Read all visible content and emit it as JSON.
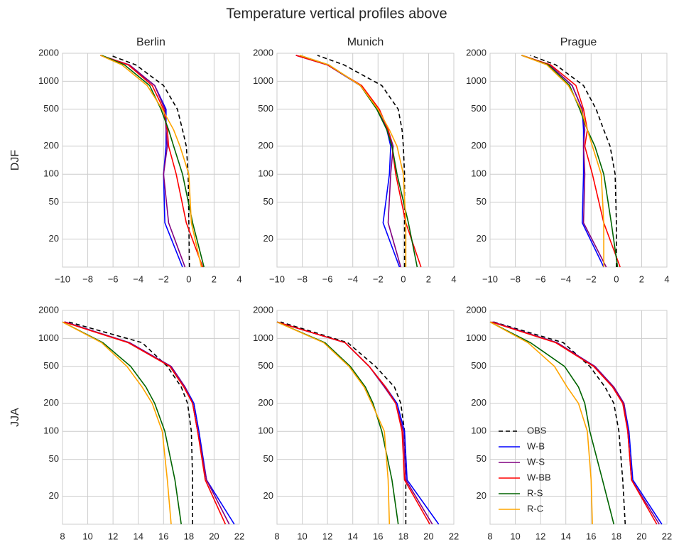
{
  "title": "Temperature vertical profiles above",
  "chart_data": [
    {
      "type": "line",
      "title": "Berlin",
      "ylabel": "DJF",
      "log_y": true,
      "grid": true,
      "xlim": [
        -10,
        4
      ],
      "xticks": [
        {
          "value": -10,
          "label": "−10"
        },
        {
          "value": -8,
          "label": "−8"
        },
        {
          "value": -6,
          "label": "−6"
        },
        {
          "value": -4,
          "label": "−4"
        },
        {
          "value": -2,
          "label": "−2"
        },
        0,
        2,
        4
      ],
      "ylim": [
        10,
        2000
      ],
      "yticks": [
        20,
        50,
        100,
        200,
        500,
        1000,
        2000
      ],
      "y": [
        10,
        30,
        100,
        200,
        300,
        500,
        900,
        1500,
        1900
      ],
      "series": [
        {
          "name": "OBS",
          "color": "#000000",
          "linestyle": "dashed",
          "x": [
            0.05,
            0,
            -0.05,
            -0.2,
            -0.5,
            -0.9,
            -2,
            -4.2,
            -6.2
          ]
        },
        {
          "name": "W-B",
          "color": "#0000ff",
          "x": [
            -0.5,
            -1.9,
            -2,
            -1.8,
            -1.8,
            -1.8,
            -2.7,
            -4.8,
            -7
          ]
        },
        {
          "name": "W-S",
          "color": "#800080",
          "x": [
            -0.3,
            -1.6,
            -2,
            -1.7,
            -1.8,
            -1.9,
            -2.7,
            -4.7,
            -7
          ]
        },
        {
          "name": "W-BB",
          "color": "#ff0000",
          "x": [
            1.1,
            -0.2,
            -1,
            -1.6,
            -1.7,
            -2,
            -2.9,
            -4.8,
            -7
          ]
        },
        {
          "name": "R-S",
          "color": "#006400",
          "x": [
            1.2,
            0.3,
            -0.5,
            -1.2,
            -1.6,
            -2.2,
            -3.1,
            -5.1,
            -6.9
          ]
        },
        {
          "name": "R-C",
          "color": "#ffa500",
          "x": [
            1,
            0.2,
            0,
            -0.7,
            -1.2,
            -2.1,
            -3.3,
            -5.3,
            -7
          ]
        }
      ]
    },
    {
      "type": "line",
      "title": "Munich",
      "log_y": true,
      "grid": true,
      "xlim": [
        -10,
        4
      ],
      "xticks": [
        {
          "value": -10,
          "label": "−10"
        },
        {
          "value": -8,
          "label": "−8"
        },
        {
          "value": -6,
          "label": "−6"
        },
        {
          "value": -4,
          "label": "−4"
        },
        {
          "value": -2,
          "label": "−2"
        },
        0,
        2,
        4
      ],
      "ylim": [
        10,
        2000
      ],
      "yticks": [
        20,
        50,
        100,
        200,
        500,
        1000,
        2000
      ],
      "y": [
        10,
        30,
        100,
        200,
        300,
        500,
        900,
        1500,
        1900
      ],
      "series": [
        {
          "name": "OBS",
          "color": "#000000",
          "linestyle": "dashed",
          "x": [
            0.1,
            0.1,
            0.1,
            0,
            -0.1,
            -0.4,
            -1.7,
            -4.7,
            -6.8
          ]
        },
        {
          "name": "W-B",
          "color": "#0000ff",
          "x": [
            -0.3,
            -1.6,
            -1.1,
            -1,
            -1.3,
            -2,
            -3.4,
            -6,
            -8.5
          ]
        },
        {
          "name": "W-S",
          "color": "#800080",
          "x": [
            -0.2,
            -1.2,
            -1,
            -0.8,
            -1.2,
            -2,
            -3.4,
            -6,
            -8.5
          ]
        },
        {
          "name": "W-BB",
          "color": "#ff0000",
          "x": [
            1.4,
            0.2,
            -0.6,
            -0.9,
            -1.2,
            -1.9,
            -3.3,
            -6,
            -8.5
          ]
        },
        {
          "name": "R-S",
          "color": "#006400",
          "x": [
            1.1,
            0.4,
            -0.5,
            -0.9,
            -1.3,
            -2.1,
            -3.4,
            -5.9,
            -8.2
          ]
        },
        {
          "name": "R-C",
          "color": "#ffa500",
          "x": [
            0.2,
            0.2,
            0,
            -0.5,
            -1.1,
            -2,
            -3.4,
            -5.9,
            -8.2
          ]
        }
      ]
    },
    {
      "type": "line",
      "title": "Prague",
      "log_y": true,
      "grid": true,
      "xlim": [
        -10,
        4
      ],
      "xticks": [
        {
          "value": -10,
          "label": "−10"
        },
        {
          "value": -8,
          "label": "−8"
        },
        {
          "value": -6,
          "label": "−6"
        },
        {
          "value": -4,
          "label": "−4"
        },
        {
          "value": -2,
          "label": "−2"
        },
        0,
        2,
        4
      ],
      "ylim": [
        10,
        2000
      ],
      "yticks": [
        20,
        50,
        100,
        200,
        500,
        1000,
        2000
      ],
      "y": [
        10,
        30,
        100,
        200,
        300,
        500,
        900,
        1500,
        1900
      ],
      "series": [
        {
          "name": "OBS",
          "color": "#000000",
          "linestyle": "dashed",
          "x": [
            0,
            0,
            -0.1,
            -0.5,
            -1,
            -1.6,
            -2.6,
            -4.8,
            -6.8
          ]
        },
        {
          "name": "W-B",
          "color": "#0000ff",
          "x": [
            -1,
            -2.7,
            -2.6,
            -2.6,
            -2.6,
            -2.7,
            -3.5,
            -5.3,
            -7.5
          ]
        },
        {
          "name": "W-S",
          "color": "#800080",
          "x": [
            -0.8,
            -2.6,
            -2.5,
            -2.6,
            -2.5,
            -2.7,
            -3.5,
            -5.3,
            -7.5
          ]
        },
        {
          "name": "W-BB",
          "color": "#ff0000",
          "x": [
            0.3,
            -1,
            -1.9,
            -2.5,
            -2.3,
            -2.6,
            -3.2,
            -5.2,
            -7.5
          ]
        },
        {
          "name": "R-S",
          "color": "#006400",
          "x": [
            0.1,
            -0.4,
            -1,
            -1.7,
            -2.3,
            -2.9,
            -3.7,
            -5.4,
            -7.5
          ]
        },
        {
          "name": "R-C",
          "color": "#ffa500",
          "x": [
            -1,
            -1,
            -1.2,
            -1.9,
            -2.3,
            -2.8,
            -3.8,
            -5.5,
            -7.5
          ]
        }
      ]
    },
    {
      "type": "line",
      "ylabel": "JJA",
      "log_y": true,
      "grid": true,
      "xlim": [
        8,
        22
      ],
      "xticks": [
        8,
        10,
        12,
        14,
        16,
        18,
        20,
        22
      ],
      "ylim": [
        10,
        2000
      ],
      "yticks": [
        20,
        50,
        100,
        200,
        500,
        1000,
        2000
      ],
      "y": [
        10,
        30,
        100,
        200,
        300,
        500,
        900,
        1500
      ],
      "series": [
        {
          "name": "OBS",
          "color": "#000000",
          "linestyle": "dashed",
          "x": [
            18.3,
            18.3,
            18.2,
            17.9,
            17.4,
            16.3,
            14.3,
            8.5
          ]
        },
        {
          "name": "W-B",
          "color": "#0000ff",
          "x": [
            21.6,
            19.4,
            18.8,
            18.4,
            17.7,
            16.6,
            13.3,
            8.2
          ]
        },
        {
          "name": "W-S",
          "color": "#800080",
          "x": [
            21.2,
            19.4,
            18.7,
            18.3,
            17.7,
            16.6,
            13.3,
            8.2
          ]
        },
        {
          "name": "W-BB",
          "color": "#ff0000",
          "x": [
            20.9,
            19.3,
            18.7,
            18.3,
            17.6,
            16.5,
            13.2,
            8.1
          ]
        },
        {
          "name": "R-S",
          "color": "#006400",
          "x": [
            17.4,
            16.9,
            16.1,
            15.3,
            14.6,
            13.4,
            11.2,
            8
          ]
        },
        {
          "name": "R-C",
          "color": "#ffa500",
          "x": [
            16.6,
            16.3,
            15.9,
            15.1,
            14.3,
            13.1,
            11.1,
            8
          ]
        }
      ]
    },
    {
      "type": "line",
      "log_y": true,
      "grid": true,
      "xlim": [
        8,
        22
      ],
      "xticks": [
        8,
        10,
        12,
        14,
        16,
        18,
        20,
        22
      ],
      "ylim": [
        10,
        2000
      ],
      "yticks": [
        20,
        50,
        100,
        200,
        500,
        1000,
        2000
      ],
      "y": [
        10,
        30,
        100,
        200,
        300,
        500,
        900,
        1500
      ],
      "series": [
        {
          "name": "OBS",
          "color": "#000000",
          "linestyle": "dashed",
          "x": [
            18.2,
            18.2,
            18.1,
            17.8,
            17.3,
            15.8,
            13.6,
            8.3
          ]
        },
        {
          "name": "W-B",
          "color": "#0000ff",
          "x": [
            20.8,
            18.3,
            18.1,
            17.5,
            16.6,
            15.3,
            13.4,
            8
          ]
        },
        {
          "name": "W-S",
          "color": "#800080",
          "x": [
            20.3,
            18.2,
            18,
            17.4,
            16.5,
            15.3,
            13.4,
            8
          ]
        },
        {
          "name": "W-BB",
          "color": "#ff0000",
          "x": [
            20.1,
            18.1,
            17.9,
            17.4,
            16.6,
            15.3,
            13.4,
            8
          ]
        },
        {
          "name": "R-S",
          "color": "#006400",
          "x": [
            17.6,
            17.1,
            16.3,
            15.6,
            15,
            13.8,
            11.8,
            8
          ]
        },
        {
          "name": "R-C",
          "color": "#ffa500",
          "x": [
            16.9,
            16.8,
            16.5,
            15.5,
            14.9,
            13.7,
            11.7,
            8
          ]
        }
      ]
    },
    {
      "type": "line",
      "log_y": true,
      "grid": true,
      "legend": "lower left",
      "xlim": [
        8,
        22
      ],
      "xticks": [
        8,
        10,
        12,
        14,
        16,
        18,
        20,
        22
      ],
      "ylim": [
        10,
        2000
      ],
      "yticks": [
        20,
        50,
        100,
        200,
        500,
        1000,
        2000
      ],
      "y": [
        10,
        30,
        100,
        200,
        300,
        500,
        900,
        1500
      ],
      "series": [
        {
          "name": "OBS",
          "color": "#000000",
          "linestyle": "dashed",
          "x": [
            18.7,
            18.5,
            18.2,
            17.8,
            17.1,
            15.9,
            13.8,
            8.3
          ]
        },
        {
          "name": "W-B",
          "color": "#0000ff",
          "x": [
            21.6,
            19.3,
            19,
            18.6,
            17.8,
            16.3,
            13.3,
            8.2
          ]
        },
        {
          "name": "W-S",
          "color": "#800080",
          "x": [
            21.4,
            19.2,
            18.9,
            18.6,
            17.8,
            16.3,
            13.3,
            8.2
          ]
        },
        {
          "name": "W-BB",
          "color": "#ff0000",
          "x": [
            21.2,
            19.2,
            18.9,
            18.5,
            17.7,
            16.2,
            13.2,
            8.1
          ]
        },
        {
          "name": "R-S",
          "color": "#006400",
          "x": [
            17.8,
            16.9,
            15.9,
            15.5,
            15,
            13.9,
            11.2,
            8
          ]
        },
        {
          "name": "R-C",
          "color": "#ffa500",
          "x": [
            16.1,
            16,
            15.7,
            15,
            14.1,
            13.1,
            11,
            8
          ]
        }
      ]
    }
  ]
}
